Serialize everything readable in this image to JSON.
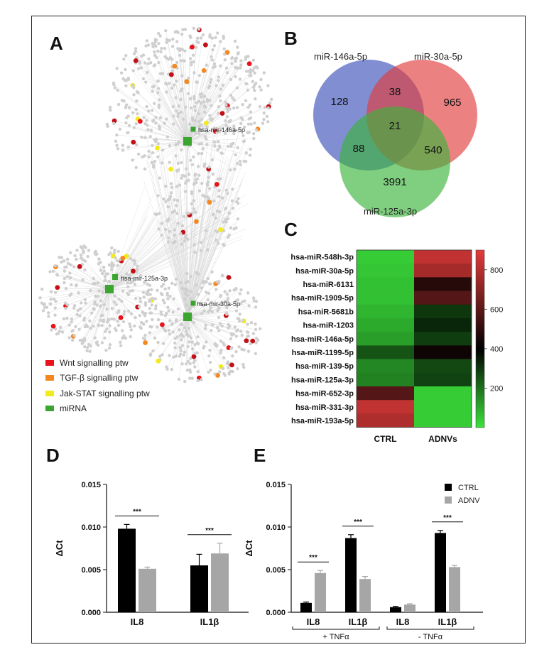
{
  "panels": {
    "a": "A",
    "b": "B",
    "c": "C",
    "d": "D",
    "e": "E"
  },
  "network": {
    "hub_labels": [
      "hsa-mir-146a-5p",
      "hsa-mir-125a-3p",
      "hsa-mir-30a-5p"
    ],
    "legend": [
      {
        "label": "Wnt signalling ptw",
        "color": "#e8131b"
      },
      {
        "label": "TGF-β signalling ptw",
        "color": "#f5871f"
      },
      {
        "label": "Jak-STAT signalling ptw",
        "color": "#f2ea1a"
      },
      {
        "label": "miRNA",
        "color": "#3aa52f"
      }
    ]
  },
  "venn": {
    "sets": [
      {
        "name": "miR-146a-5p",
        "color": "#3d52b8"
      },
      {
        "name": "miR-30a-5p",
        "color": "#e03d3d"
      },
      {
        "name": "miR-125a-3p",
        "color": "#3cb43c"
      }
    ],
    "regions": {
      "only_146": "128",
      "only_30": "965",
      "only_125": "3991",
      "r146_30": "38",
      "r146_125": "88",
      "r30_125": "540",
      "all": "21"
    }
  },
  "chart_data": [
    {
      "type": "heatmap",
      "rows": [
        "hsa-miR-548h-3p",
        "hsa-miR-30a-5p",
        "hsa-miR-6131",
        "hsa-miR-1909-5p",
        "hsa-miR-5681b",
        "hsa-miR-1203",
        "hsa-miR-146a-5p",
        "hsa-miR-1199-5p",
        "hsa-miR-139-5p",
        "hsa-miR-125a-3p",
        "hsa-miR-652-3p",
        "hsa-miR-331-3p",
        "hsa-miR-193a-5p"
      ],
      "columns": [
        "CTRL",
        "ADNVs"
      ],
      "values": [
        [
          40,
          820
        ],
        [
          50,
          760
        ],
        [
          60,
          480
        ],
        [
          60,
          580
        ],
        [
          80,
          300
        ],
        [
          100,
          330
        ],
        [
          120,
          290
        ],
        [
          250,
          430
        ],
        [
          160,
          270
        ],
        [
          170,
          280
        ],
        [
          580,
          40
        ],
        [
          820,
          40
        ],
        [
          780,
          40
        ]
      ],
      "scale": {
        "min": 0,
        "max": 900,
        "ticks": [
          200,
          400,
          600,
          800
        ]
      }
    },
    {
      "type": "bar",
      "ylabel": "ΔCt",
      "ylim": [
        0,
        0.015
      ],
      "yticks": [
        "0.000",
        "0.005",
        "0.010",
        "0.015"
      ],
      "categories": [
        "IL8",
        "IL1β"
      ],
      "series": [
        {
          "name": "CTRL",
          "color": "#000000",
          "values": [
            0.0098,
            0.0055
          ],
          "errors": [
            0.0005,
            0.0013
          ]
        },
        {
          "name": "ADNV",
          "color": "#a6a6a6",
          "values": [
            0.0051,
            0.0069
          ],
          "errors": [
            0.0002,
            0.0012
          ]
        }
      ],
      "significance": [
        "***",
        "***"
      ]
    },
    {
      "type": "bar",
      "ylabel": "ΔCt",
      "ylim": [
        0,
        0.015
      ],
      "yticks": [
        "0.000",
        "0.005",
        "0.010",
        "0.015"
      ],
      "categories": [
        "IL8",
        "IL1β",
        "IL8",
        "IL1β"
      ],
      "groups": [
        "+ TNFα",
        "- TNFα"
      ],
      "series": [
        {
          "name": "CTRL",
          "color": "#000000",
          "values": [
            0.0011,
            0.0087,
            0.0006,
            0.0093
          ],
          "errors": [
            0.0001,
            0.0004,
            0.0001,
            0.0003
          ]
        },
        {
          "name": "ADNV",
          "color": "#a6a6a6",
          "values": [
            0.0046,
            0.0039,
            0.0009,
            0.0053
          ],
          "errors": [
            0.0003,
            0.0003,
            0.0001,
            0.0002
          ]
        }
      ],
      "significance": [
        "***",
        "***",
        "",
        "***"
      ]
    }
  ]
}
